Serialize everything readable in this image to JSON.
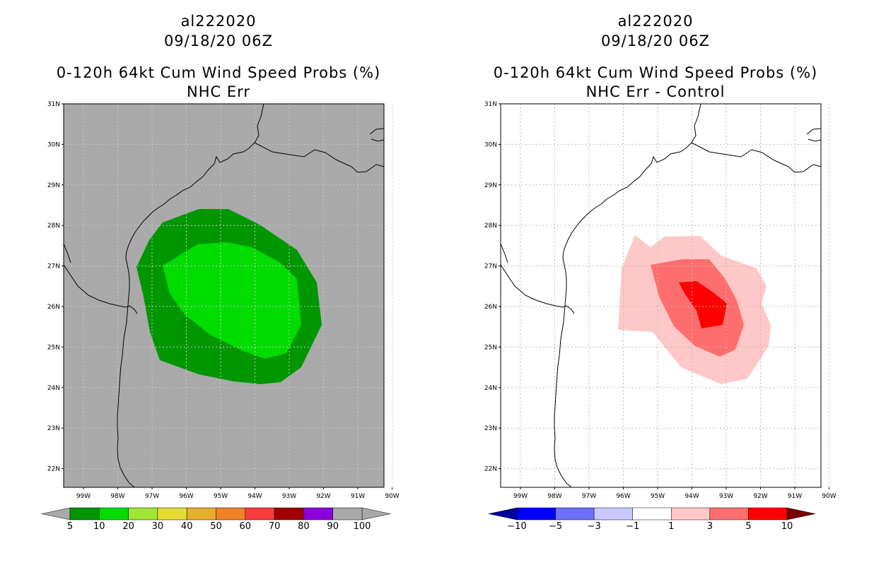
{
  "panels": [
    {
      "id": "nhc-err",
      "storm_id": "al222020",
      "datetime": "09/18/20 06Z",
      "product": "0-120h 64kt Cum Wind Speed Probs (%)",
      "subtitle": "NHC Err",
      "background": "#aaaaaa",
      "colorbar": {
        "labels": [
          "5",
          "10",
          "20",
          "30",
          "40",
          "50",
          "60",
          "70",
          "80",
          "90",
          "100"
        ],
        "colors": [
          "#009600",
          "#00dc00",
          "#a0e632",
          "#e6dc32",
          "#e6af2d",
          "#f08228",
          "#fa3c3c",
          "#a00000",
          "#8c00dc",
          "#a9a9a9"
        ],
        "end_colors": [
          "#a9a9a9",
          "#a9a9a9"
        ]
      }
    },
    {
      "id": "nhc-err-minus-control",
      "storm_id": "al222020",
      "datetime": "09/18/20 06Z",
      "product": "0-120h 64kt Cum Wind Speed Probs (%)",
      "subtitle": "NHC Err - Control",
      "background": "#ffffff",
      "colorbar": {
        "labels": [
          "−10",
          "−5",
          "−3",
          "−1",
          "1",
          "3",
          "5",
          "10"
        ],
        "colors": [
          "#0000ff",
          "#6e6eff",
          "#c8c8ff",
          "#ffffff",
          "#ffc8c8",
          "#ff6e6e",
          "#ff0000"
        ],
        "end_colors": [
          "#00009b",
          "#780000"
        ]
      }
    }
  ],
  "axes": {
    "lat_labels": [
      "31N",
      "30N",
      "29N",
      "28N",
      "27N",
      "26N",
      "25N",
      "24N",
      "23N",
      "22N"
    ],
    "lon_labels": [
      "99W",
      "98W",
      "97W",
      "96W",
      "95W",
      "94W",
      "93W",
      "92W",
      "91W",
      "90W"
    ]
  },
  "contour_colors": {
    "left": [
      "#009600",
      "#00dc00"
    ],
    "right": [
      "#ffc8c8",
      "#ff6e6e",
      "#ff0000"
    ]
  }
}
